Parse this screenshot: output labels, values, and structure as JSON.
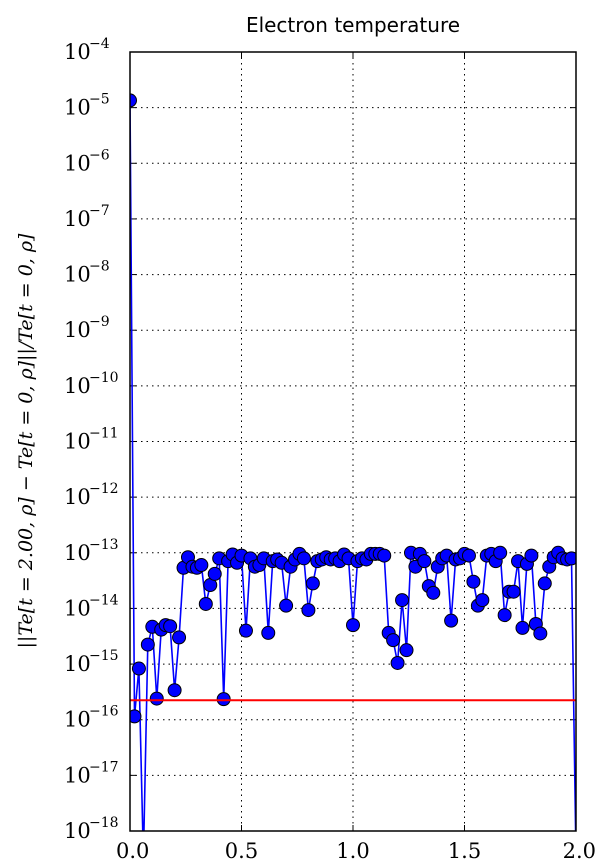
{
  "chart_data": {
    "type": "line",
    "title": "Electron temperature",
    "xlabel": "",
    "ylabel": "||Te[t = 2.00, ρ] − Te[t = 0, ρ]||/Te[t = 0, ρ]",
    "xlim": [
      0.0,
      2.0
    ],
    "ylim_exp": [
      -18,
      -4
    ],
    "yscale": "log",
    "grid": true,
    "x_ticks": [
      "0.0",
      "0.5",
      "1.0",
      "1.5",
      "2.0"
    ],
    "y_ticks": [
      {
        "base": "10",
        "exp": "−4"
      },
      {
        "base": "10",
        "exp": "−5"
      },
      {
        "base": "10",
        "exp": "−6"
      },
      {
        "base": "10",
        "exp": "−7"
      },
      {
        "base": "10",
        "exp": "−8"
      },
      {
        "base": "10",
        "exp": "−9"
      },
      {
        "base": "10",
        "exp": "−10"
      },
      {
        "base": "10",
        "exp": "−11"
      },
      {
        "base": "10",
        "exp": "−12"
      },
      {
        "base": "10",
        "exp": "−13"
      },
      {
        "base": "10",
        "exp": "−14"
      },
      {
        "base": "10",
        "exp": "−15"
      },
      {
        "base": "10",
        "exp": "−16"
      },
      {
        "base": "10",
        "exp": "−17"
      },
      {
        "base": "10",
        "exp": "−18"
      }
    ],
    "series": [
      {
        "color": "#0000ff",
        "marker": "circle",
        "x": [
          0.0,
          0.02,
          0.04,
          0.06,
          0.08,
          0.1,
          0.12,
          0.14,
          0.16,
          0.18,
          0.2,
          0.22,
          0.24,
          0.26,
          0.28,
          0.3,
          0.32,
          0.34,
          0.36,
          0.38,
          0.4,
          0.42,
          0.44,
          0.46,
          0.48,
          0.5,
          0.52,
          0.54,
          0.56,
          0.58,
          0.6,
          0.62,
          0.64,
          0.66,
          0.68,
          0.7,
          0.72,
          0.74,
          0.76,
          0.78,
          0.8,
          0.82,
          0.84,
          0.86,
          0.88,
          0.9,
          0.92,
          0.94,
          0.96,
          0.98,
          1.0,
          1.02,
          1.04,
          1.06,
          1.08,
          1.1,
          1.12,
          1.14,
          1.16,
          1.18,
          1.2,
          1.22,
          1.24,
          1.26,
          1.28,
          1.3,
          1.32,
          1.34,
          1.36,
          1.38,
          1.4,
          1.42,
          1.44,
          1.46,
          1.48,
          1.5,
          1.52,
          1.54,
          1.56,
          1.58,
          1.6,
          1.62,
          1.64,
          1.66,
          1.68,
          1.7,
          1.72,
          1.74,
          1.76,
          1.78,
          1.8,
          1.82,
          1.84,
          1.86,
          1.88,
          1.9,
          1.92,
          1.94,
          1.96,
          1.98,
          2.0
        ],
        "y_log10": [
          -4.87,
          -15.94,
          -15.08,
          -18.5,
          -14.65,
          -14.33,
          -15.62,
          -14.38,
          -14.3,
          -14.32,
          -15.47,
          -14.52,
          -13.27,
          -13.08,
          -13.25,
          -13.27,
          -13.22,
          -13.92,
          -13.58,
          -13.38,
          -13.1,
          -15.63,
          -13.15,
          -13.03,
          -13.18,
          -13.05,
          -14.4,
          -13.1,
          -13.25,
          -13.22,
          -13.1,
          -14.44,
          -13.15,
          -13.12,
          -13.18,
          -13.95,
          -13.25,
          -13.12,
          -13.02,
          -13.1,
          -14.03,
          -13.55,
          -13.15,
          -13.12,
          -13.08,
          -13.12,
          -13.1,
          -13.15,
          -13.03,
          -13.1,
          -14.3,
          -13.15,
          -13.1,
          -13.12,
          -13.02,
          -13.02,
          -13.02,
          -13.05,
          -14.44,
          -14.57,
          -14.98,
          -13.85,
          -14.75,
          -13.0,
          -13.25,
          -13.02,
          -13.15,
          -13.6,
          -13.72,
          -13.25,
          -13.1,
          -13.05,
          -14.22,
          -13.12,
          -13.1,
          -13.02,
          -13.05,
          -13.52,
          -13.95,
          -13.85,
          -13.05,
          -13.02,
          -13.15,
          -13.0,
          -14.12,
          -13.7,
          -13.7,
          -13.15,
          -14.35,
          -13.2,
          -13.05,
          -14.28,
          -14.45,
          -13.55,
          -13.25,
          -13.08,
          -13.0,
          -13.1,
          -13.12,
          -13.1,
          -18.5
        ]
      },
      {
        "color": "#ff0000",
        "marker": "none",
        "x": [
          0.0,
          2.0
        ],
        "y_log10": [
          -15.65,
          -15.65
        ]
      }
    ]
  }
}
